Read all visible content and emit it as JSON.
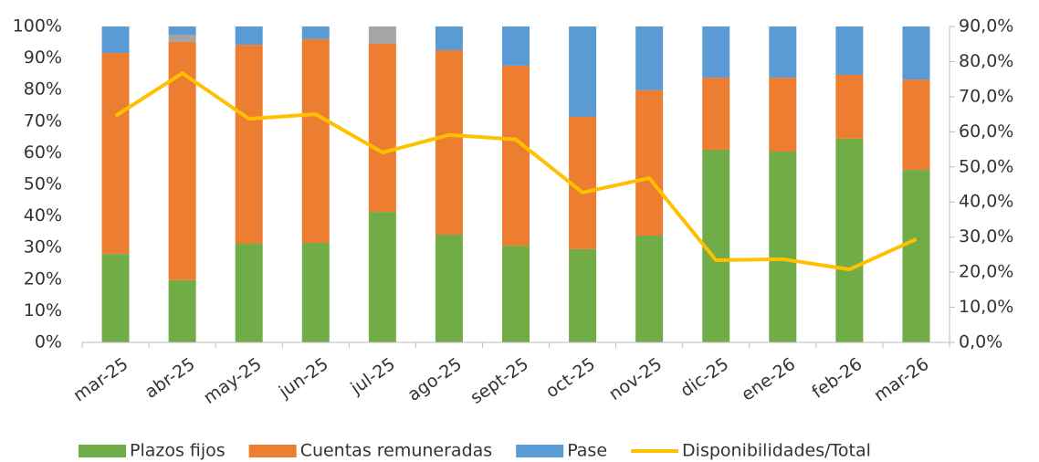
{
  "chart_data": {
    "type": "bar",
    "stacked": true,
    "categories": [
      "mar-25",
      "abr-25",
      "may-25",
      "jun-25",
      "jul-25",
      "ago-25",
      "sept-25",
      "oct-25",
      "nov-25",
      "dic-25",
      "ene-26",
      "feb-26",
      "mar-26"
    ],
    "series": [
      {
        "name": "Plazos fijos",
        "color": "#70ad47",
        "values": [
          28.0,
          19.7,
          31.2,
          31.5,
          41.3,
          34.1,
          30.6,
          29.5,
          33.8,
          61.0,
          60.4,
          64.5,
          54.6
        ]
      },
      {
        "name": "Cuentas remuneradas",
        "color": "#ed7d31",
        "values": [
          63.6,
          75.4,
          63.0,
          64.5,
          53.2,
          58.4,
          57.0,
          41.9,
          46.0,
          22.8,
          23.4,
          20.2,
          28.6
        ]
      },
      {
        "color": "#a5a5a5",
        "values": [
          0,
          2.3,
          0,
          0,
          5.5,
          0,
          0,
          0,
          0,
          0,
          0,
          0,
          0
        ]
      },
      {
        "name": "Pase",
        "color": "#5b9bd5",
        "values": [
          8.4,
          2.6,
          5.8,
          4.0,
          0,
          7.5,
          12.4,
          28.6,
          20.2,
          16.2,
          16.2,
          15.3,
          16.8
        ]
      },
      {
        "name": "Disponibilidades/Total",
        "type": "line",
        "axis": "y2",
        "color": "#ffc000",
        "values": [
          64.5,
          76.7,
          63.7,
          65.0,
          54.1,
          59.1,
          57.8,
          42.7,
          46.8,
          23.4,
          23.7,
          20.8,
          29.4
        ]
      }
    ],
    "ylim": [
      0,
      100
    ],
    "yticks": [
      {
        "value": 0,
        "label": "0%"
      },
      {
        "value": 10,
        "label": "10%"
      },
      {
        "value": 20,
        "label": "20%"
      },
      {
        "value": 30,
        "label": "30%"
      },
      {
        "value": 40,
        "label": "40%"
      },
      {
        "value": 50,
        "label": "50%"
      },
      {
        "value": 60,
        "label": "60%"
      },
      {
        "value": 70,
        "label": "70%"
      },
      {
        "value": 80,
        "label": "80%"
      },
      {
        "value": 90,
        "label": "90%"
      },
      {
        "value": 100,
        "label": "100%"
      }
    ],
    "y2lim": [
      0,
      90
    ],
    "y2ticks": [
      {
        "value": 0,
        "label": "0,0%"
      },
      {
        "value": 10,
        "label": "10,0%"
      },
      {
        "value": 20,
        "label": "20,0%"
      },
      {
        "value": 30,
        "label": "30,0%"
      },
      {
        "value": 40,
        "label": "40,0%"
      },
      {
        "value": 50,
        "label": "50,0%"
      },
      {
        "value": 60,
        "label": "60,0%"
      },
      {
        "value": 70,
        "label": "70,0%"
      },
      {
        "value": 80,
        "label": "80,0%"
      },
      {
        "value": 90,
        "label": "90,0%"
      }
    ],
    "grid": false,
    "legend": "bottom"
  }
}
